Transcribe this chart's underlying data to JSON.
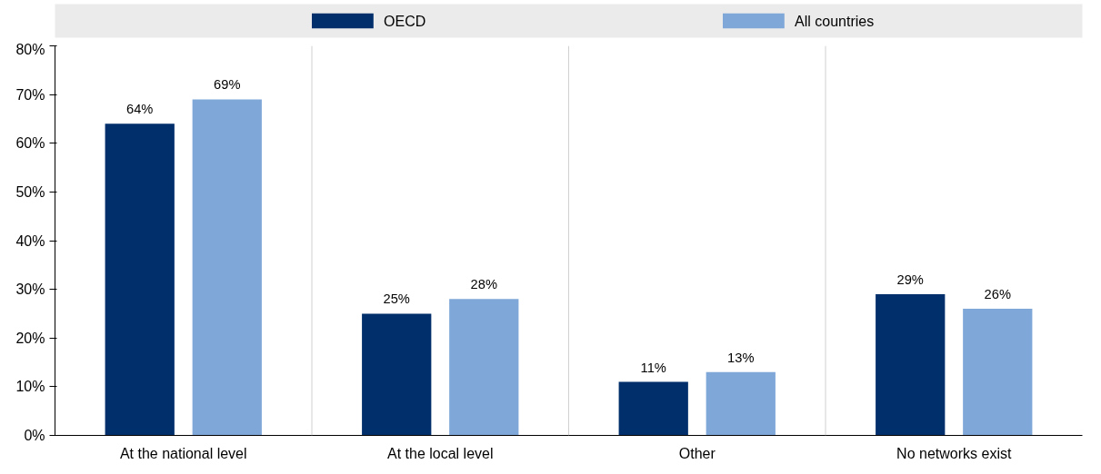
{
  "chart_data": {
    "type": "bar",
    "categories": [
      "At the national level",
      "At the local level",
      "Other",
      "No networks exist"
    ],
    "series": [
      {
        "name": "OECD",
        "color": "#002f6c",
        "values": [
          64,
          25,
          11,
          29
        ],
        "value_labels": [
          "64%",
          "25%",
          "11%",
          "29%"
        ]
      },
      {
        "name": "All countries",
        "color": "#7fa8d9",
        "values": [
          69,
          28,
          13,
          26
        ],
        "value_labels": [
          "69%",
          "28%",
          "13%",
          "26%"
        ]
      }
    ],
    "ylim": [
      0,
      80
    ],
    "yticks": [
      {
        "value": 0,
        "label": "0%"
      },
      {
        "value": 10,
        "label": "10%"
      },
      {
        "value": 20,
        "label": "20%"
      },
      {
        "value": 30,
        "label": "30%"
      },
      {
        "value": 40,
        "label": "40%"
      },
      {
        "value": 50,
        "label": "50%"
      },
      {
        "value": 60,
        "label": "60%"
      },
      {
        "value": 70,
        "label": "70%"
      },
      {
        "value": 80,
        "label": "80%"
      }
    ],
    "grid": "x",
    "legend": "top"
  }
}
